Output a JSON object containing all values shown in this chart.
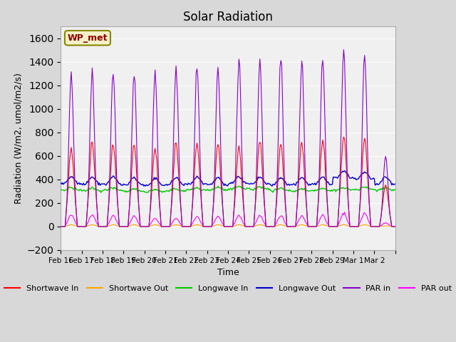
{
  "title": "Solar Radiation",
  "ylabel": "Radiation (W/m2, umol/m2/s)",
  "xlabel": "Time",
  "ylim": [
    -200,
    1700
  ],
  "yticks": [
    -200,
    0,
    200,
    400,
    600,
    800,
    1000,
    1200,
    1400,
    1600
  ],
  "bg_color": "#d8d8d8",
  "plot_bg_color": "#f0f0f0",
  "station_label": "WP_met",
  "station_label_color": "#8B0000",
  "station_label_bg": "#f5f0c8",
  "n_days": 16,
  "date_labels": [
    "Feb 16",
    "Feb 17",
    "Feb 18",
    "Feb 19",
    "Feb 20",
    "Feb 21",
    "Feb 22",
    "Feb 23",
    "Feb 24",
    "Feb 25",
    "Feb 26",
    "Feb 27",
    "Feb 28",
    "Feb 29",
    "Mar 1",
    "Mar 2",
    ""
  ],
  "x_tick_positions": [
    0,
    1,
    2,
    3,
    4,
    5,
    6,
    7,
    8,
    9,
    10,
    11,
    12,
    13,
    14,
    15,
    16
  ],
  "colors": {
    "shortwave_in": "#ff0000",
    "shortwave_out": "#ffa500",
    "longwave_in": "#00cc00",
    "longwave_out": "#0000cc",
    "par_in": "#8800cc",
    "par_out": "#ff00ff"
  },
  "legend": [
    {
      "label": "Shortwave In",
      "color": "#ff0000"
    },
    {
      "label": "Shortwave Out",
      "color": "#ffa500"
    },
    {
      "label": "Longwave In",
      "color": "#00cc00"
    },
    {
      "label": "Longwave Out",
      "color": "#0000cc"
    },
    {
      "label": "PAR in",
      "color": "#8800cc"
    },
    {
      "label": "PAR out",
      "color": "#ff00ff"
    }
  ],
  "par_in_peaks": [
    1310,
    1300,
    1315,
    1310,
    1310,
    1355,
    1355,
    1340,
    1395,
    1395,
    1405,
    1390,
    1415,
    1505,
    1450,
    600
  ],
  "sw_in_peaks": [
    670,
    710,
    700,
    700,
    660,
    705,
    705,
    700,
    680,
    720,
    700,
    715,
    740,
    780,
    760,
    350
  ],
  "sw_out_peaks": [
    15,
    15,
    15,
    15,
    15,
    15,
    15,
    15,
    15,
    15,
    15,
    15,
    15,
    15,
    15,
    5
  ],
  "par_out_peaks": [
    100,
    100,
    90,
    90,
    70,
    70,
    85,
    85,
    90,
    90,
    90,
    90,
    95,
    110,
    115,
    30
  ],
  "lw_in_values": [
    310,
    305,
    308,
    300,
    295,
    300,
    310,
    310,
    320,
    315,
    305,
    300,
    305,
    310,
    315,
    310
  ],
  "lw_out_values": [
    365,
    360,
    360,
    355,
    350,
    355,
    360,
    355,
    365,
    360,
    355,
    355,
    360,
    415,
    405,
    360
  ]
}
